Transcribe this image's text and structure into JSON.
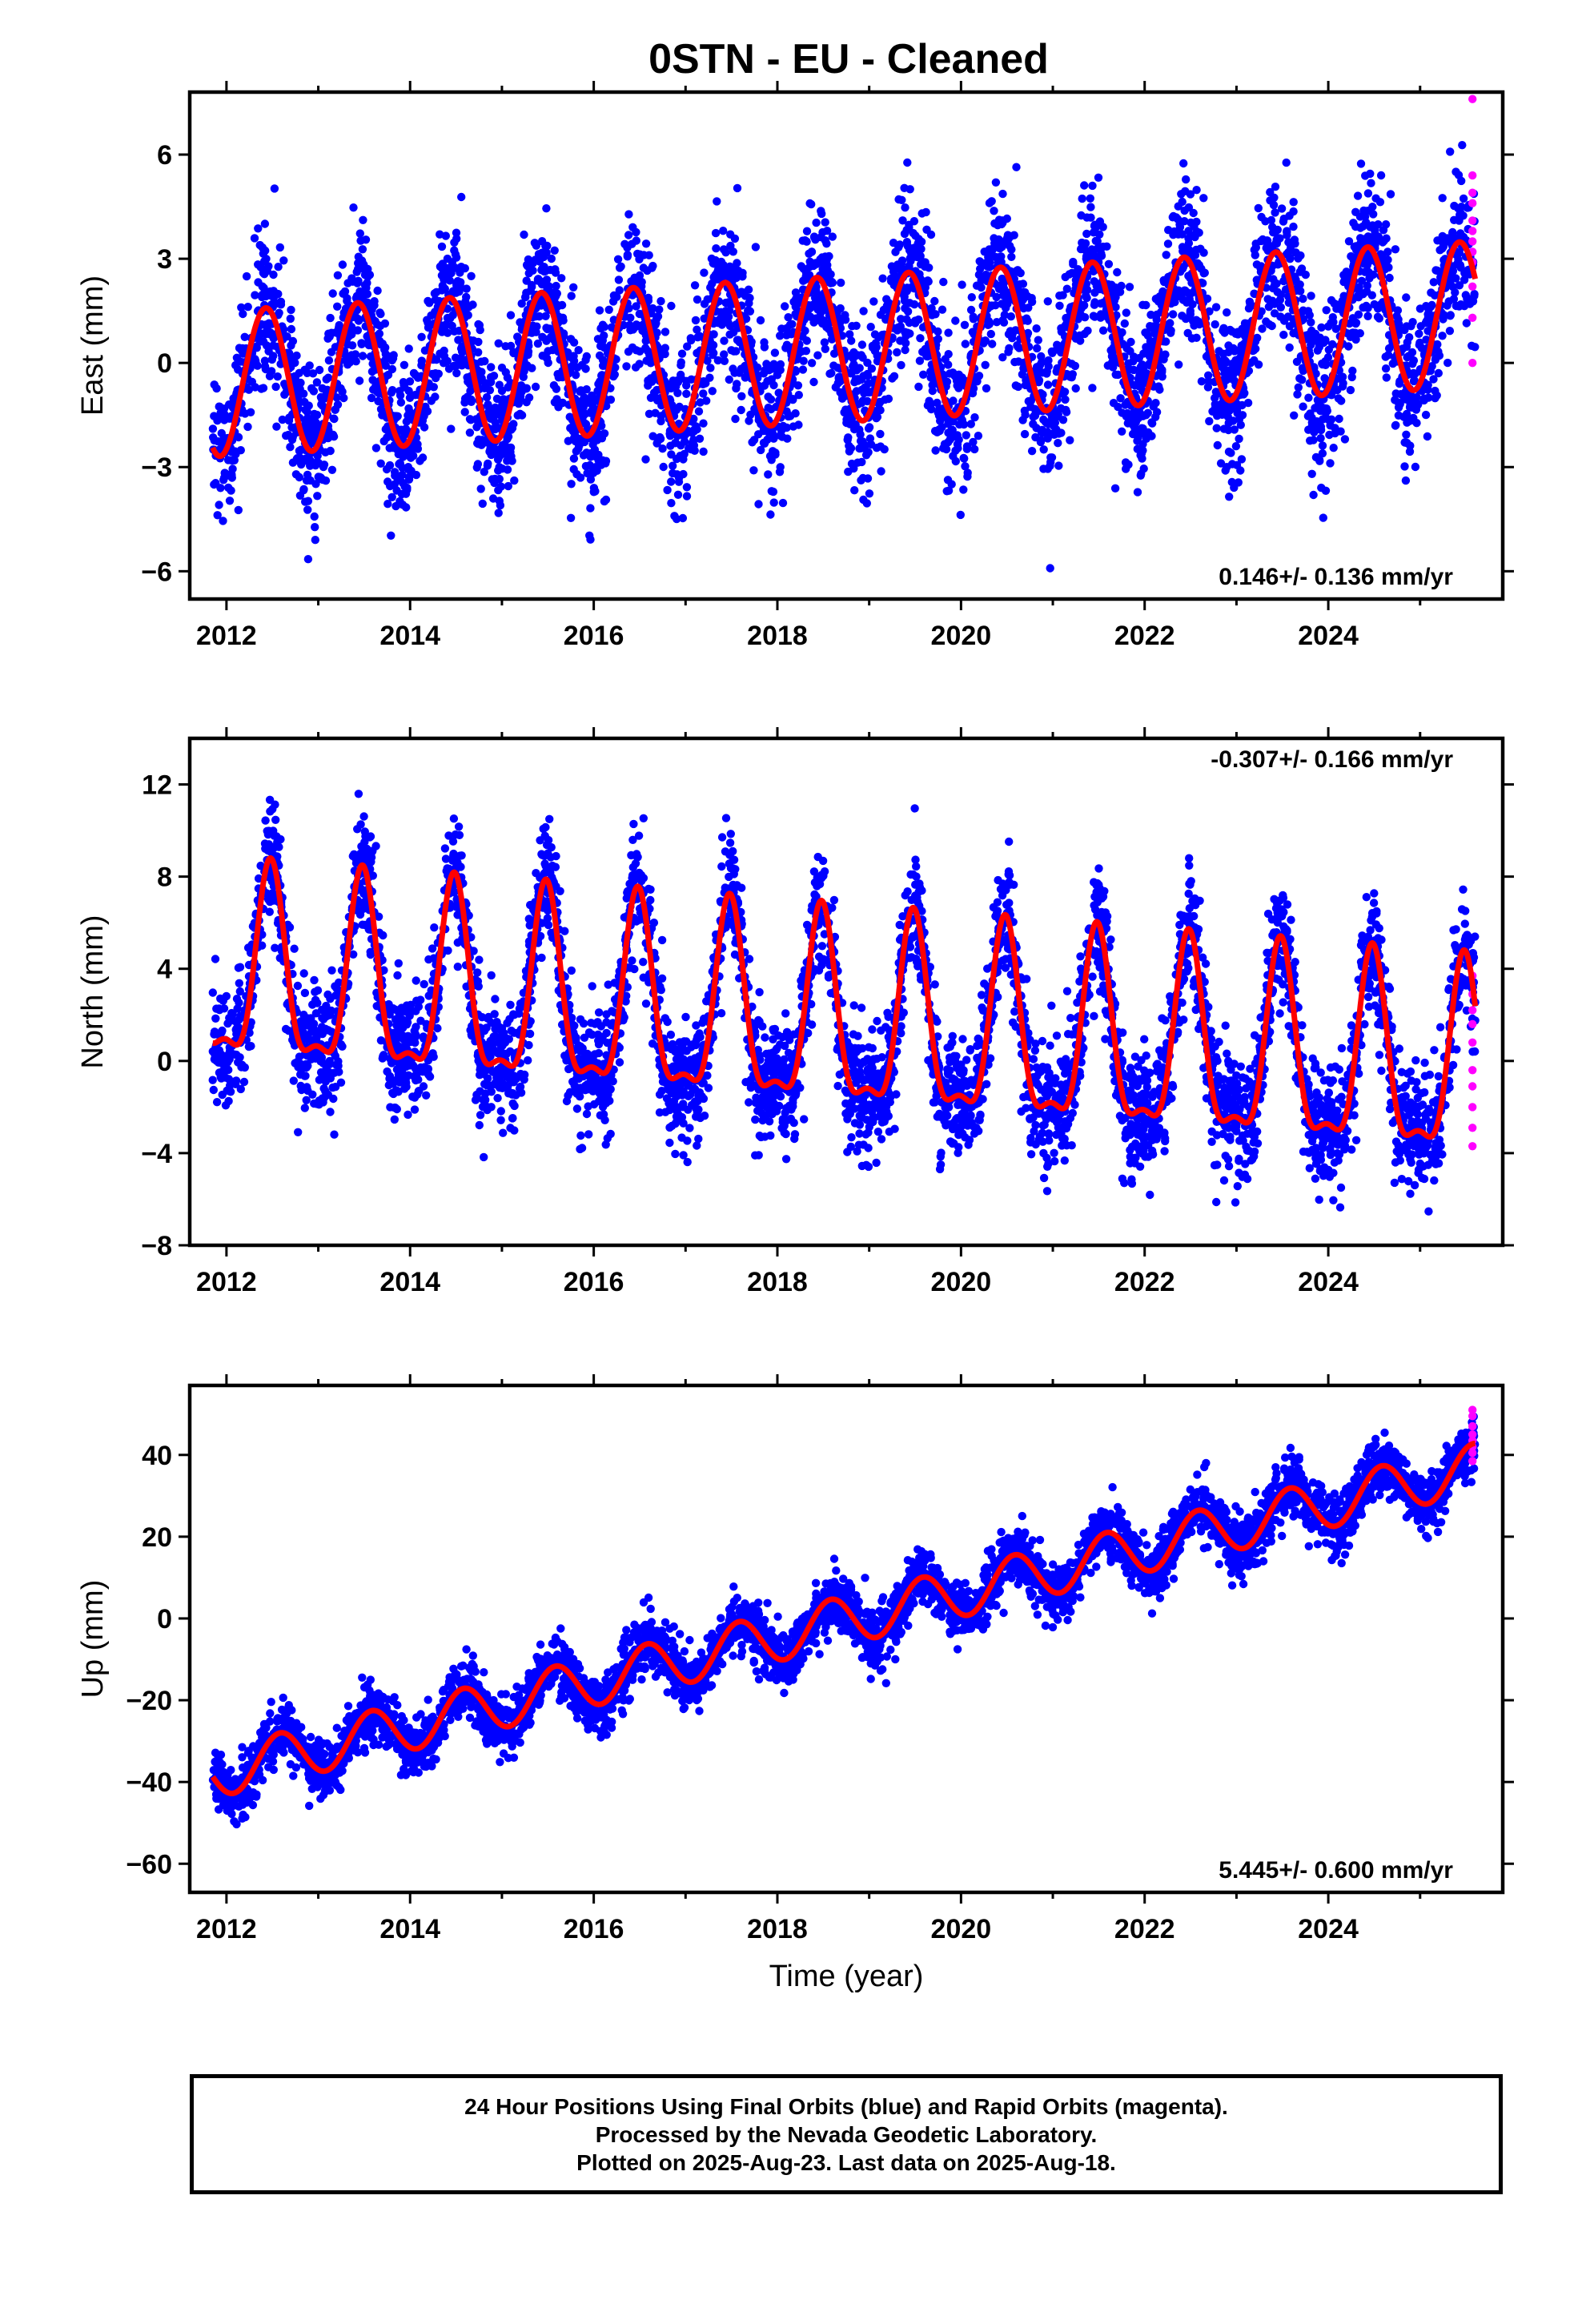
{
  "title": "0STN  - EU - Cleaned",
  "colors": {
    "final_orbits": "#0000ff",
    "rapid_orbits": "#ff00ff",
    "model": "#ff0000",
    "axes": "#000000"
  },
  "x_axis": {
    "label": "Time (year)",
    "ticks": [
      "2012",
      "2014",
      "2016",
      "2018",
      "2020",
      "2022",
      "2024"
    ]
  },
  "chart_data": [
    {
      "type": "scatter",
      "panel": "east",
      "ylabel": "East (mm)",
      "ylim": [
        -6.8,
        7.8
      ],
      "xlim": [
        2011.6,
        2025.9
      ],
      "y_ticks": [
        "6",
        "3",
        "0",
        "−3",
        "−6"
      ],
      "rate_label": "0.146+/- 0.136 mm/yr",
      "legend_position": "bottom-right",
      "grid": false,
      "model": {
        "start_year": 2011.85,
        "end_year": 2025.6,
        "trend_mm_per_yr": 0.146,
        "offset_mm": -0.6,
        "annual_amp_mm": 2.1,
        "annual_peak_year_frac": 0.43,
        "semiannual_amp_mm": 0.0
      },
      "scatter": {
        "noise_mm": 1.1,
        "count": 4600
      },
      "series": [
        {
          "name": "Final Orbits (blue)",
          "color": "#0000ff"
        },
        {
          "name": "Rapid Orbits (magenta)",
          "color": "#ff00ff",
          "values": [
            7.6,
            5.4,
            4.9,
            4.6,
            4.1,
            3.8,
            3.5,
            3.2,
            2.9,
            2.2,
            1.3,
            0.0
          ]
        }
      ]
    },
    {
      "type": "scatter",
      "panel": "north",
      "ylabel": "North (mm)",
      "ylim": [
        -8,
        14
      ],
      "xlim": [
        2011.6,
        2025.9
      ],
      "y_ticks": [
        "12",
        "8",
        "4",
        "0",
        "−4",
        "−8"
      ],
      "rate_label": "-0.307+/- 0.166 mm/yr",
      "legend_position": "top-right",
      "grid": false,
      "model": {
        "start_year": 2011.85,
        "end_year": 2025.6,
        "trend_mm_per_yr": -0.307,
        "offset_mm": 3.6,
        "annual_amp_mm": 4.0,
        "annual_peak_year_frac": 0.48,
        "semiannual_amp_mm": 1.4
      },
      "scatter": {
        "noise_mm": 1.3,
        "count": 4600
      },
      "series": [
        {
          "name": "Final Orbits (blue)",
          "color": "#0000ff"
        },
        {
          "name": "Rapid Orbits (magenta)",
          "color": "#ff00ff",
          "values": [
            3.7,
            2.9,
            2.2,
            1.6,
            0.8,
            -0.4,
            -1.1,
            -2.0,
            -2.9,
            -3.7
          ]
        }
      ]
    },
    {
      "type": "scatter",
      "panel": "up",
      "ylabel": "Up (mm)",
      "ylim": [
        -67,
        57
      ],
      "xlim": [
        2011.6,
        2025.9
      ],
      "y_ticks": [
        "40",
        "20",
        "0",
        "−20",
        "−40",
        "−60"
      ],
      "rate_label": "5.445+/- 0.600 mm/yr",
      "legend_position": "bottom-right",
      "grid": false,
      "model": {
        "start_year": 2011.85,
        "end_year": 2025.6,
        "trend_mm_per_yr": 5.445,
        "offset_mm": -38.0,
        "annual_amp_mm": 6.0,
        "annual_peak_year_frac": 0.58,
        "semiannual_amp_mm": 0.0
      },
      "scatter": {
        "noise_mm": 3.5,
        "count": 4600
      },
      "series": [
        {
          "name": "Final Orbits (blue)",
          "color": "#0000ff"
        },
        {
          "name": "Rapid Orbits (magenta)",
          "color": "#ff00ff",
          "values": [
            51.0,
            49.5,
            47.0,
            45.0,
            43.5,
            42.0,
            40.5,
            38.5
          ]
        }
      ]
    }
  ],
  "caption": {
    "line1": "24 Hour Positions Using Final Orbits (blue) and Rapid Orbits (magenta).",
    "line2": "Processed by the Nevada Geodetic Laboratory.",
    "line3": "Plotted on 2025-Aug-23. Last data on 2025-Aug-18."
  }
}
